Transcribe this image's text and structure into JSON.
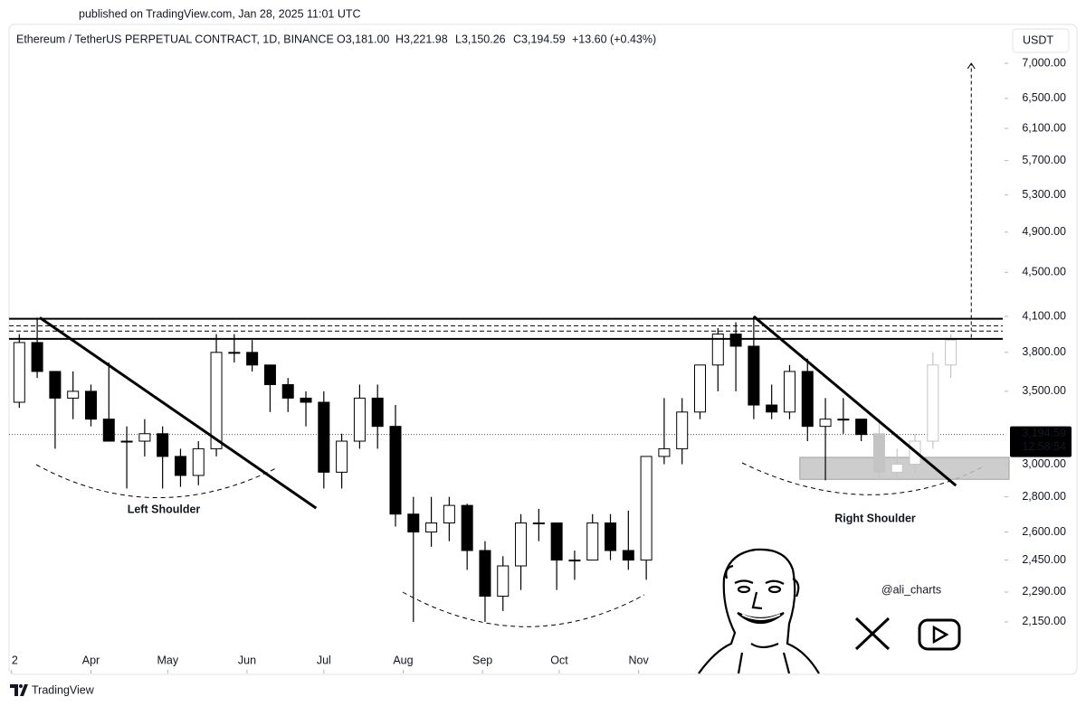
{
  "published": "published on TradingView.com, Jan 28, 2025 11:01 UTC",
  "chart_data": {
    "type": "candlestick",
    "title": "Ethereum / TetherUS PERPETUAL CONTRACT, 1D, BINANCE",
    "ohlc_legend": [
      "O3,181.00",
      "H3,221.98",
      "L3,150.26",
      "C3,194.59",
      "+13.60 (+0.43%)"
    ],
    "currency": "USDT",
    "log_scale": true,
    "grid": false,
    "color": "#000000",
    "xlim": [
      "2024-02-29",
      "2025-03-24"
    ],
    "xticks": [
      {
        "value": "2024-03-01",
        "label": "2"
      },
      {
        "value": "2024-04-01",
        "label": "Apr"
      },
      {
        "value": "2024-05-01",
        "label": "May"
      },
      {
        "value": "2024-06-01",
        "label": "Jun"
      },
      {
        "value": "2024-07-01",
        "label": "Jul"
      },
      {
        "value": "2024-08-01",
        "label": "Aug"
      },
      {
        "value": "2024-09-01",
        "label": "Sep"
      },
      {
        "value": "2024-10-01",
        "label": "Oct"
      },
      {
        "value": "2024-11-01",
        "label": "Nov"
      }
    ],
    "ylim": [
      1928,
      7600
    ],
    "yticks": [
      {
        "value": 2150,
        "label": "2,150.00"
      },
      {
        "value": 2290,
        "label": "2,290.00"
      },
      {
        "value": 2450,
        "label": "2,450.00"
      },
      {
        "value": 2600,
        "label": "2,600.00"
      },
      {
        "value": 2800,
        "label": "2,800.00"
      },
      {
        "value": 3000,
        "label": "3,000.00"
      },
      {
        "value": 3500,
        "label": "3,500.00"
      },
      {
        "value": 3800,
        "label": "3,800.00"
      },
      {
        "value": 4100,
        "label": "4,100.00"
      },
      {
        "value": 4500,
        "label": "4,500.00"
      },
      {
        "value": 4900,
        "label": "4,900.00"
      },
      {
        "value": 5300,
        "label": "5,300.00"
      },
      {
        "value": 5700,
        "label": "5,700.00"
      },
      {
        "value": 6100,
        "label": "6,100.00"
      },
      {
        "value": 6500,
        "label": "6,500.00"
      },
      {
        "value": 7000,
        "label": "7,000.00"
      }
    ],
    "candles": {
      "x": [
        "2024-03-04",
        "2024-03-11",
        "2024-03-18",
        "2024-03-25",
        "2024-04-01",
        "2024-04-08",
        "2024-04-15",
        "2024-04-22",
        "2024-04-29",
        "2024-05-06",
        "2024-05-13",
        "2024-05-20",
        "2024-05-27",
        "2024-06-03",
        "2024-06-10",
        "2024-06-17",
        "2024-06-24",
        "2024-07-01",
        "2024-07-08",
        "2024-07-15",
        "2024-07-22",
        "2024-07-29",
        "2024-08-05",
        "2024-08-12",
        "2024-08-19",
        "2024-08-26",
        "2024-09-02",
        "2024-09-09",
        "2024-09-16",
        "2024-09-23",
        "2024-09-30",
        "2024-10-07",
        "2024-10-14",
        "2024-10-21",
        "2024-10-28",
        "2024-11-04",
        "2024-11-11",
        "2024-11-18",
        "2024-11-25",
        "2024-12-02",
        "2024-12-09",
        "2024-12-16",
        "2024-12-23",
        "2024-12-30",
        "2025-01-06",
        "2025-01-13",
        "2025-01-20",
        "2025-01-27"
      ],
      "open": [
        3420,
        3880,
        3650,
        3450,
        3500,
        3300,
        3150,
        3150,
        3200,
        3050,
        2930,
        3100,
        3800,
        3800,
        3700,
        3550,
        3450,
        3420,
        2950,
        3150,
        3450,
        3250,
        2700,
        2600,
        2650,
        2750,
        2500,
        2270,
        2420,
        2650,
        2650,
        2450,
        2450,
        2650,
        2500,
        2450,
        3050,
        3100,
        3350,
        3700,
        3950,
        3850,
        3400,
        3350,
        3650,
        3250,
        3300,
        3300
      ],
      "high": [
        3950,
        4090,
        3650,
        3650,
        3550,
        3720,
        3250,
        3300,
        3250,
        3100,
        3150,
        3950,
        3950,
        3900,
        3700,
        3600,
        3500,
        3500,
        3200,
        3550,
        3550,
        3400,
        2800,
        2800,
        2800,
        2760,
        2550,
        2470,
        2700,
        2730,
        2650,
        2500,
        2700,
        2700,
        2720,
        3050,
        3450,
        3450,
        3700,
        4000,
        4050,
        4100,
        3550,
        3700,
        3750,
        3450,
        3450,
        3300
      ],
      "low": [
        3380,
        3600,
        3100,
        3300,
        3250,
        3150,
        2850,
        3050,
        2850,
        2860,
        2870,
        3050,
        3720,
        3650,
        3350,
        3350,
        3250,
        2850,
        2850,
        3100,
        3100,
        2630,
        2150,
        2520,
        2550,
        2400,
        2150,
        2200,
        2300,
        2550,
        2300,
        2350,
        2450,
        2450,
        2400,
        2350,
        3000,
        3000,
        3300,
        3500,
        3500,
        3300,
        3300,
        3300,
        3150,
        2900,
        3200,
        3150
      ],
      "close": [
        3880,
        3650,
        3450,
        3500,
        3300,
        3150,
        3150,
        3200,
        3050,
        2930,
        3100,
        3800,
        3800,
        3700,
        3550,
        3450,
        3420,
        2950,
        3150,
        3450,
        3250,
        2700,
        2600,
        2650,
        2750,
        2500,
        2270,
        2420,
        2650,
        2650,
        2450,
        2450,
        2650,
        2500,
        2450,
        3050,
        3100,
        3350,
        3700,
        3950,
        3850,
        3400,
        3350,
        3650,
        3250,
        3300,
        3300,
        3194.59
      ]
    },
    "projection": {
      "color": "#c4c4c4",
      "x": [
        "2025-02-03",
        "2025-02-10",
        "2025-02-17",
        "2025-02-24",
        "2025-03-03"
      ],
      "open": [
        3200,
        2950,
        3000,
        3150,
        3700
      ],
      "high": [
        3300,
        3100,
        3200,
        3800,
        3950
      ],
      "low": [
        2900,
        2900,
        2950,
        3100,
        3600
      ],
      "close": [
        2950,
        3000,
        3150,
        3700,
        3900
      ]
    },
    "levels": [
      {
        "value": 4080,
        "style": "solid"
      },
      {
        "value": 4020,
        "style": "dashed"
      },
      {
        "value": 3975,
        "style": "dashed"
      },
      {
        "value": 3910,
        "style": "solid"
      }
    ],
    "trendlines": [
      {
        "x": [
          "2024-03-12",
          "2024-06-28"
        ],
        "y": [
          4090,
          2734
        ]
      },
      {
        "x": [
          "2024-12-16",
          "2025-03-05"
        ],
        "y": [
          4100,
          2868
        ]
      }
    ],
    "zone": {
      "x_start": "2025-01-03",
      "y": [
        2906,
        3044
      ]
    },
    "target_arrow": {
      "x": "2025-03-11",
      "from": 3920,
      "to": 7000
    },
    "last_price": {
      "value": 3194.59,
      "label": "3,194.59"
    },
    "countdown": "12:58:54",
    "annotations": [
      "Left Shoulder",
      "Right Shoulder"
    ]
  },
  "watermark": {
    "handle": "@ali_charts"
  },
  "footer": "TradingView"
}
